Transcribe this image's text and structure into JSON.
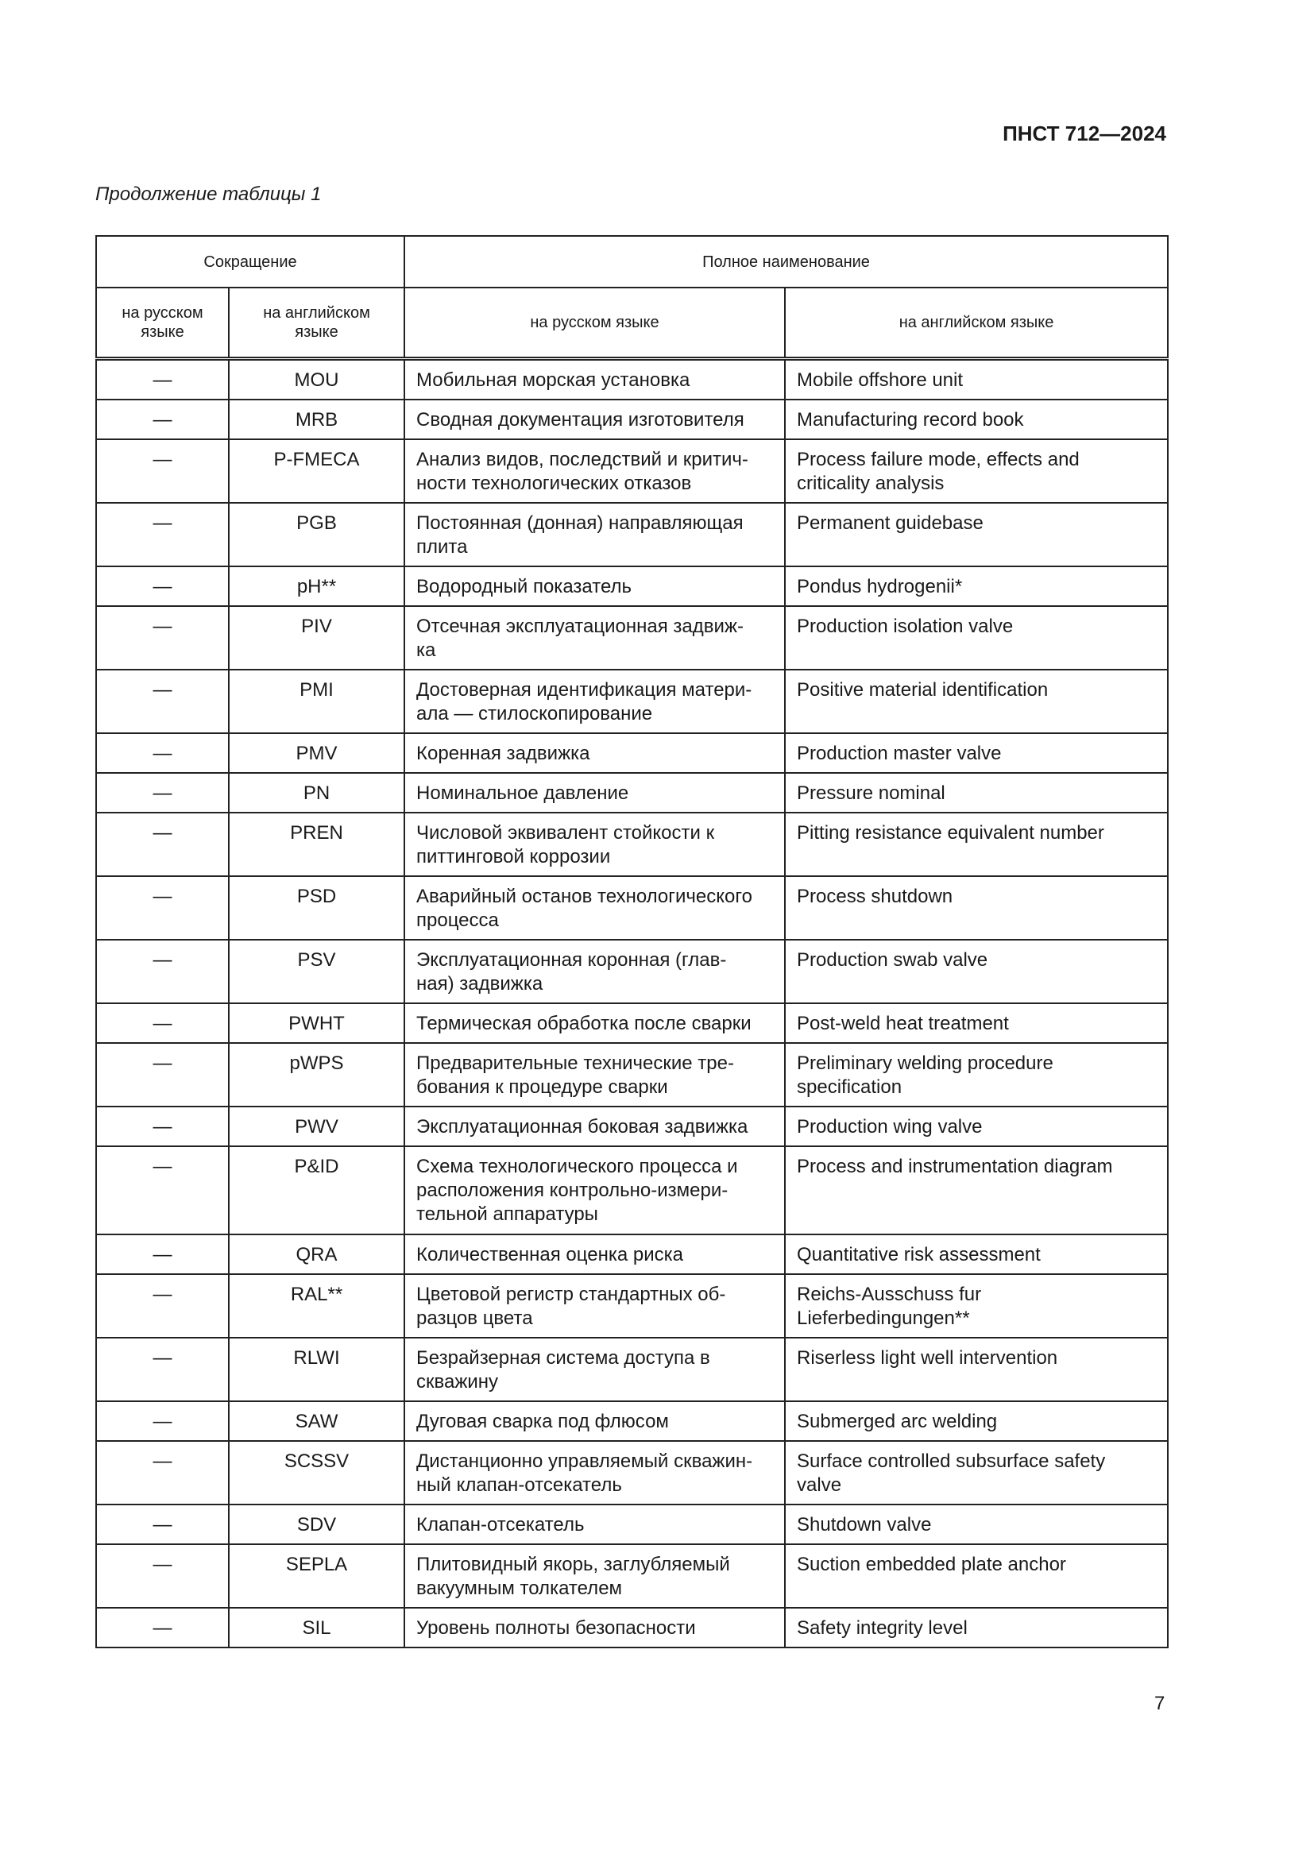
{
  "header": {
    "doc_code": "ПНСТ 712—2024"
  },
  "caption": "Продолжение таблицы 1",
  "table": {
    "group_headers": [
      "Сокращение",
      "Полное наименование"
    ],
    "sub_headers": [
      "на русском\nязыке",
      "на английском\nязыке",
      "на русском языке",
      "на английском языке"
    ],
    "rows": [
      {
        "ru_abbr": "—",
        "en_abbr": "MOU",
        "ru_name": "Мобильная морская установка",
        "en_name": "Mobile offshore unit",
        "lines": 1
      },
      {
        "ru_abbr": "—",
        "en_abbr": "MRB",
        "ru_name": "Сводная документация изготовителя",
        "en_name": "Manufacturing record book",
        "lines": 1
      },
      {
        "ru_abbr": "—",
        "en_abbr": "P-FMECA",
        "ru_name": "Анализ видов, последствий и критич-\nности технологических отказов",
        "en_name": "Process failure mode, effects and\ncriticality analysis",
        "lines": 2
      },
      {
        "ru_abbr": "—",
        "en_abbr": "PGB",
        "ru_name": "Постоянная (донная) направляющая\nплита",
        "en_name": "Permanent guidebase",
        "lines": 2
      },
      {
        "ru_abbr": "—",
        "en_abbr": "pH**",
        "ru_name": "Водородный показатель",
        "en_name": "Pondus hydrogenii*",
        "lines": 1
      },
      {
        "ru_abbr": "—",
        "en_abbr": "PIV",
        "ru_name": "Отсечная эксплуатационная задвиж-\nка",
        "en_name": "Production isolation valve",
        "lines": 2
      },
      {
        "ru_abbr": "—",
        "en_abbr": "PMI",
        "ru_name": "Достоверная идентификация матери-\nала — стилоскопирование",
        "en_name": "Positive material identification",
        "lines": 2
      },
      {
        "ru_abbr": "—",
        "en_abbr": "PMV",
        "ru_name": "Коренная задвижка",
        "en_name": "Production master valve",
        "lines": 1
      },
      {
        "ru_abbr": "—",
        "en_abbr": "PN",
        "ru_name": "Номинальное давление",
        "en_name": "Pressure nominal",
        "lines": 1
      },
      {
        "ru_abbr": "—",
        "en_abbr": "PREN",
        "ru_name": "Числовой эквивалент стойкости к\nпиттинговой коррозии",
        "en_name": "Pitting resistance equivalent number",
        "lines": 2
      },
      {
        "ru_abbr": "—",
        "en_abbr": "PSD",
        "ru_name": "Аварийный останов технологического\nпроцесса",
        "en_name": "Process shutdown",
        "lines": 2
      },
      {
        "ru_abbr": "—",
        "en_abbr": "PSV",
        "ru_name": "Эксплуатационная коронная (глав-\nная) задвижка",
        "en_name": "Production swab valve",
        "lines": 2
      },
      {
        "ru_abbr": "—",
        "en_abbr": "PWHT",
        "ru_name": "Термическая обработка после сварки",
        "en_name": "Post-weld heat treatment",
        "lines": 1
      },
      {
        "ru_abbr": "—",
        "en_abbr": "pWPS",
        "ru_name": "Предварительные технические тре-\nбования к процедуре сварки",
        "en_name": "Preliminary welding procedure\nspecification",
        "lines": 2
      },
      {
        "ru_abbr": "—",
        "en_abbr": "PWV",
        "ru_name": "Эксплуатационная боковая задвижка",
        "en_name": "Production wing valve",
        "lines": 1
      },
      {
        "ru_abbr": "—",
        "en_abbr": "P&ID",
        "ru_name": "Схема технологического процесса и\nрасположения контрольно-измери-\nтельной аппаратуры",
        "en_name": "Process and instrumentation diagram",
        "lines": 3
      },
      {
        "ru_abbr": "—",
        "en_abbr": "QRA",
        "ru_name": "Количественная оценка риска",
        "en_name": "Quantitative risk assessment",
        "lines": 1
      },
      {
        "ru_abbr": "—",
        "en_abbr": "RAL**",
        "ru_name": "Цветовой регистр стандартных об-\nразцов цвета",
        "en_name": "Reichs-Ausschuss fur\nLieferbedingungen**",
        "lines": 2
      },
      {
        "ru_abbr": "—",
        "en_abbr": "RLWI",
        "ru_name": "Безрайзерная система доступа в\nскважину",
        "en_name": "Riserless light well intervention",
        "lines": 2
      },
      {
        "ru_abbr": "—",
        "en_abbr": "SAW",
        "ru_name": "Дуговая сварка под флюсом",
        "en_name": "Submerged arc welding",
        "lines": 1
      },
      {
        "ru_abbr": "—",
        "en_abbr": "SCSSV",
        "ru_name": "Дистанционно управляемый скважин-\nный клапан-отсекатель",
        "en_name": "Surface controlled subsurface safety\nvalve",
        "lines": 2
      },
      {
        "ru_abbr": "—",
        "en_abbr": "SDV",
        "ru_name": "Клапан-отсекатель",
        "en_name": "Shutdown valve",
        "lines": 1
      },
      {
        "ru_abbr": "—",
        "en_abbr": "SEPLA",
        "ru_name": "Плитовидный якорь, заглубляемый\nвакуумным толкателем",
        "en_name": "Suction embedded plate anchor",
        "lines": 2
      },
      {
        "ru_abbr": "—",
        "en_abbr": "SIL",
        "ru_name": "Уровень полноты безопасности",
        "en_name": "Safety integrity level",
        "lines": 1
      }
    ]
  },
  "page_number": "7"
}
